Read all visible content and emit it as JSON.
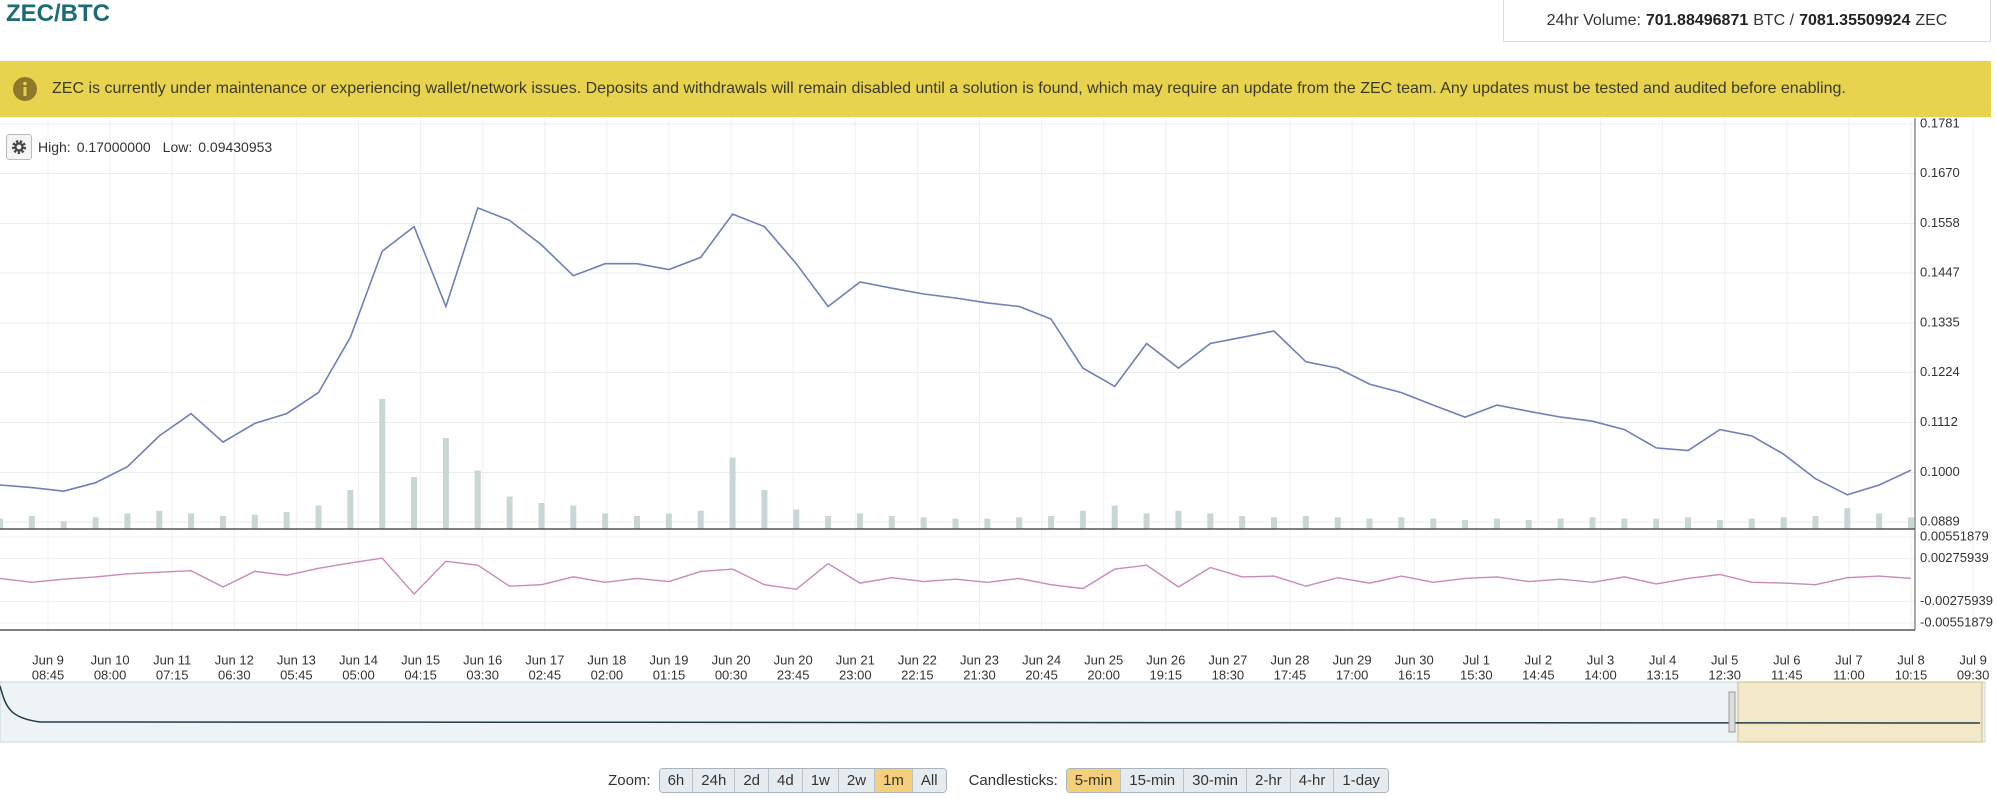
{
  "header": {
    "title": "ZEC/BTC",
    "volume": {
      "label": "24hr Volume:",
      "btc": "701.88496871",
      "btc_unit": "BTC /",
      "zec": "7081.35509924",
      "zec_unit": "ZEC"
    }
  },
  "notice": "ZEC is currently under maintenance or experiencing wallet/network issues. Deposits and withdrawals will remain disabled until a solution is found, which may require an update from the ZEC team. Any updates must be tested and audited before enabling.",
  "hilo": {
    "high_label": "High:",
    "high": "0.17000000",
    "low_label": "Low:",
    "low": "0.09430953"
  },
  "chart_data": {
    "type": "line",
    "ylim": [
      0.0889,
      0.1781
    ],
    "yticks": [
      {
        "value": 0.0889,
        "label": "0.0889"
      },
      {
        "value": 0.1,
        "label": "0.1000"
      },
      {
        "value": 0.1112,
        "label": "0.1112"
      },
      {
        "value": 0.1224,
        "label": "0.1224"
      },
      {
        "value": 0.1335,
        "label": "0.1335"
      },
      {
        "value": 0.1447,
        "label": "0.1447"
      },
      {
        "value": 0.1558,
        "label": "0.1558"
      },
      {
        "value": 0.167,
        "label": "0.1670"
      },
      {
        "value": 0.1781,
        "label": "0.1781"
      }
    ],
    "grid": true,
    "series": [
      {
        "color": "#6f7fb8",
        "values": [
          0.0972,
          0.0966,
          0.0958,
          0.0977,
          0.1013,
          0.1082,
          0.1132,
          0.1068,
          0.111,
          0.1132,
          0.1179,
          0.1303,
          0.1496,
          0.1551,
          0.1372,
          0.1593,
          0.1565,
          0.151,
          0.1441,
          0.1468,
          0.1468,
          0.1455,
          0.1482,
          0.1579,
          0.1551,
          0.1468,
          0.1372,
          0.1427,
          0.1413,
          0.14,
          0.1391,
          0.138,
          0.1372,
          0.1344,
          0.1234,
          0.1193,
          0.1289,
          0.1234,
          0.1289,
          0.1303,
          0.1317,
          0.1248,
          0.1234,
          0.1198,
          0.1179,
          0.1151,
          0.1124,
          0.1151,
          0.1137,
          0.1124,
          0.1115,
          0.1096,
          0.1055,
          0.1049,
          0.1096,
          0.1082,
          0.1041,
          0.0986,
          0.095,
          0.0972,
          0.1005
        ]
      }
    ],
    "volume": {
      "color": "#c9d6d6",
      "values": [
        8,
        10,
        6,
        9,
        12,
        14,
        12,
        10,
        11,
        13,
        18,
        30,
        100,
        40,
        70,
        45,
        25,
        20,
        18,
        12,
        10,
        12,
        14,
        55,
        30,
        15,
        10,
        12,
        10,
        9,
        8,
        8,
        9,
        10,
        14,
        18,
        12,
        14,
        12,
        10,
        9,
        10,
        9,
        8,
        9,
        8,
        7,
        8,
        7,
        8,
        9,
        8,
        8,
        9,
        7,
        8,
        9,
        10,
        16,
        12,
        9
      ]
    },
    "indicator": {
      "color": "#c98ab8",
      "ylim": [
        -0.00551879,
        0.00551879
      ],
      "yticks": [
        -0.00551879,
        -0.00275939,
        0.00275939,
        0.00551879
      ],
      "values": [
        0.0002,
        -0.0003,
        0.0001,
        0.0004,
        0.0008,
        0.001,
        0.0012,
        -0.0009,
        0.0011,
        0.0006,
        0.0015,
        0.0022,
        0.0028,
        -0.0018,
        0.0024,
        0.0019,
        -0.0008,
        -0.0006,
        0.0004,
        -0.0003,
        0.0002,
        -0.0002,
        0.0011,
        0.0014,
        -0.0006,
        -0.0012,
        0.0021,
        -0.0004,
        0.0003,
        -0.0002,
        0.0001,
        -0.0003,
        0.0002,
        -0.0006,
        -0.0011,
        0.0014,
        0.0019,
        -0.0009,
        0.0016,
        0.0004,
        0.0005,
        -0.0008,
        0.0003,
        -0.0004,
        0.0005,
        -0.0003,
        0.0002,
        0.0004,
        -0.0002,
        0.0001,
        -0.0003,
        0.0004,
        -0.0005,
        0.0002,
        0.0007,
        -0.0003,
        -0.0004,
        -0.0006,
        0.0003,
        0.0005,
        0.0002
      ]
    },
    "xlabels": [
      [
        "Jun 9",
        "08:45"
      ],
      [
        "Jun 10",
        "08:00"
      ],
      [
        "Jun 11",
        "07:15"
      ],
      [
        "Jun 12",
        "06:30"
      ],
      [
        "Jun 13",
        "05:45"
      ],
      [
        "Jun 14",
        "05:00"
      ],
      [
        "Jun 15",
        "04:15"
      ],
      [
        "Jun 16",
        "03:30"
      ],
      [
        "Jun 17",
        "02:45"
      ],
      [
        "Jun 18",
        "02:00"
      ],
      [
        "Jun 19",
        "01:15"
      ],
      [
        "Jun 20",
        "00:30"
      ],
      [
        "Jun 20",
        "23:45"
      ],
      [
        "Jun 21",
        "23:00"
      ],
      [
        "Jun 22",
        "22:15"
      ],
      [
        "Jun 23",
        "21:30"
      ],
      [
        "Jun 24",
        "20:45"
      ],
      [
        "Jun 25",
        "20:00"
      ],
      [
        "Jun 26",
        "19:15"
      ],
      [
        "Jun 27",
        "18:30"
      ],
      [
        "Jun 28",
        "17:45"
      ],
      [
        "Jun 29",
        "17:00"
      ],
      [
        "Jun 30",
        "16:15"
      ],
      [
        "Jul 1",
        "15:30"
      ],
      [
        "Jul 2",
        "14:45"
      ],
      [
        "Jul 3",
        "14:00"
      ],
      [
        "Jul 4",
        "13:15"
      ],
      [
        "Jul 5",
        "12:30"
      ],
      [
        "Jul 6",
        "11:45"
      ],
      [
        "Jul 7",
        "11:00"
      ],
      [
        "Jul 8",
        "10:15"
      ],
      [
        "Jul 9",
        "09:30"
      ]
    ]
  },
  "controls": {
    "zoom": {
      "label": "Zoom:",
      "buttons": [
        "6h",
        "24h",
        "2d",
        "4d",
        "1w",
        "2w",
        "1m",
        "All"
      ],
      "active": 6
    },
    "candlesticks": {
      "label": "Candlesticks:",
      "buttons": [
        "5-min",
        "15-min",
        "30-min",
        "2-hr",
        "4-hr",
        "1-day"
      ],
      "active": 0
    }
  }
}
